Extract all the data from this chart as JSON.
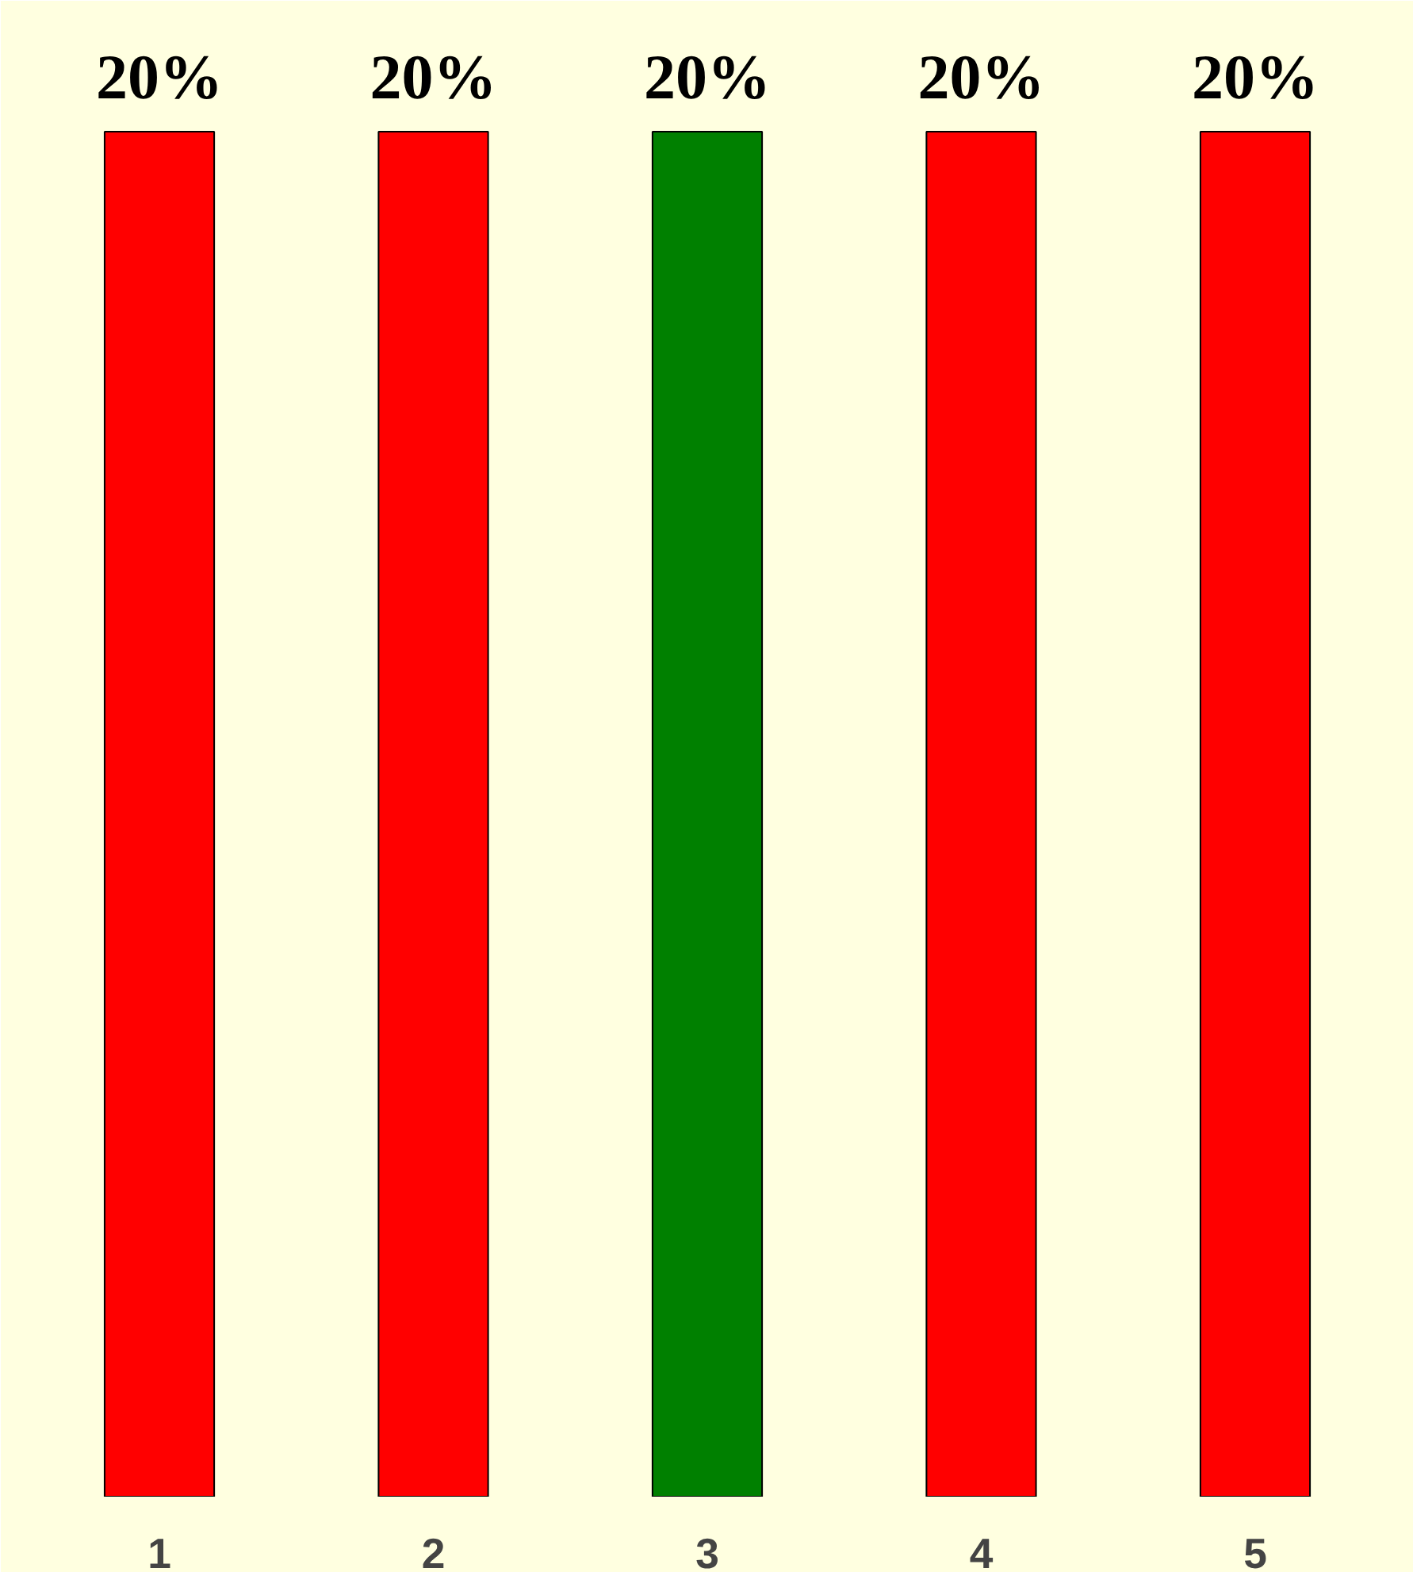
{
  "chart_data": {
    "type": "bar",
    "categories": [
      "1",
      "2",
      "3",
      "4",
      "5"
    ],
    "values": [
      20,
      20,
      20,
      20,
      20
    ],
    "colors": [
      "#ff0000",
      "#ff0000",
      "#008000",
      "#ff0000",
      "#ff0000"
    ],
    "value_labels": [
      "20%",
      "20%",
      "20%",
      "20%",
      "20%"
    ]
  }
}
